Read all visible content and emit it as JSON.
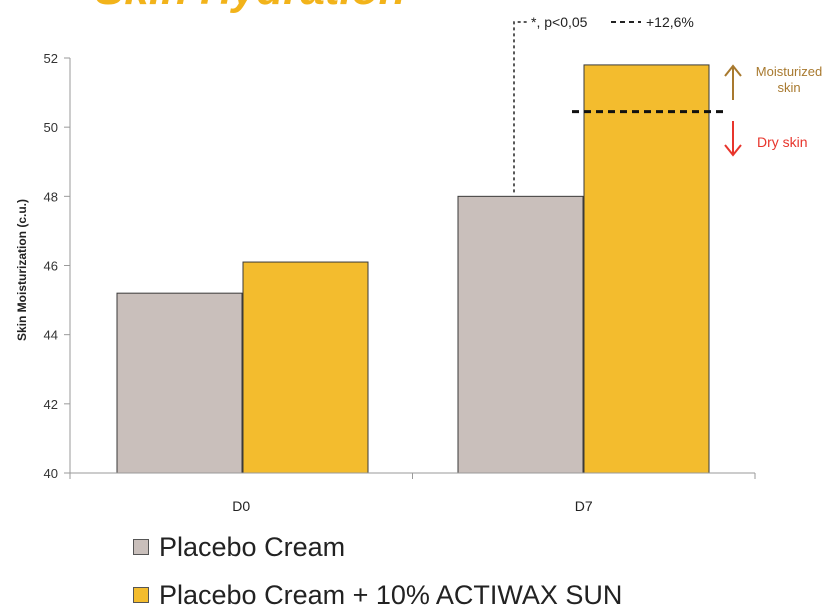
{
  "chart_data": {
    "type": "bar",
    "title": "Skin Hydration",
    "ylabel": "Skin Moisturization (c.u.)",
    "xlabel": "",
    "categories": [
      "D0",
      "D7"
    ],
    "ylim": [
      40,
      52
    ],
    "yticks": [
      40,
      42,
      44,
      46,
      48,
      50,
      52
    ],
    "grid": false,
    "legend_position": "bottom-left",
    "series": [
      {
        "name": "Placebo Cream",
        "values": [
          45.2,
          48.0
        ],
        "color": "#c9bfbb"
      },
      {
        "name": "Placebo Cream + 10% ACTIWAX SUN",
        "values": [
          46.1,
          51.8
        ],
        "color": "#f3bc2e"
      }
    ],
    "annotations": {
      "significance": "*, p<0,05",
      "increase": "+12,6%",
      "threshold_value": 50.45,
      "up_label": "Moisturized skin",
      "down_label": "Dry skin"
    }
  },
  "colors": {
    "title": "#f2b31a",
    "up_arrow": "#a8792e",
    "down_arrow": "#e8352c",
    "axis": "#9a9a9a"
  }
}
